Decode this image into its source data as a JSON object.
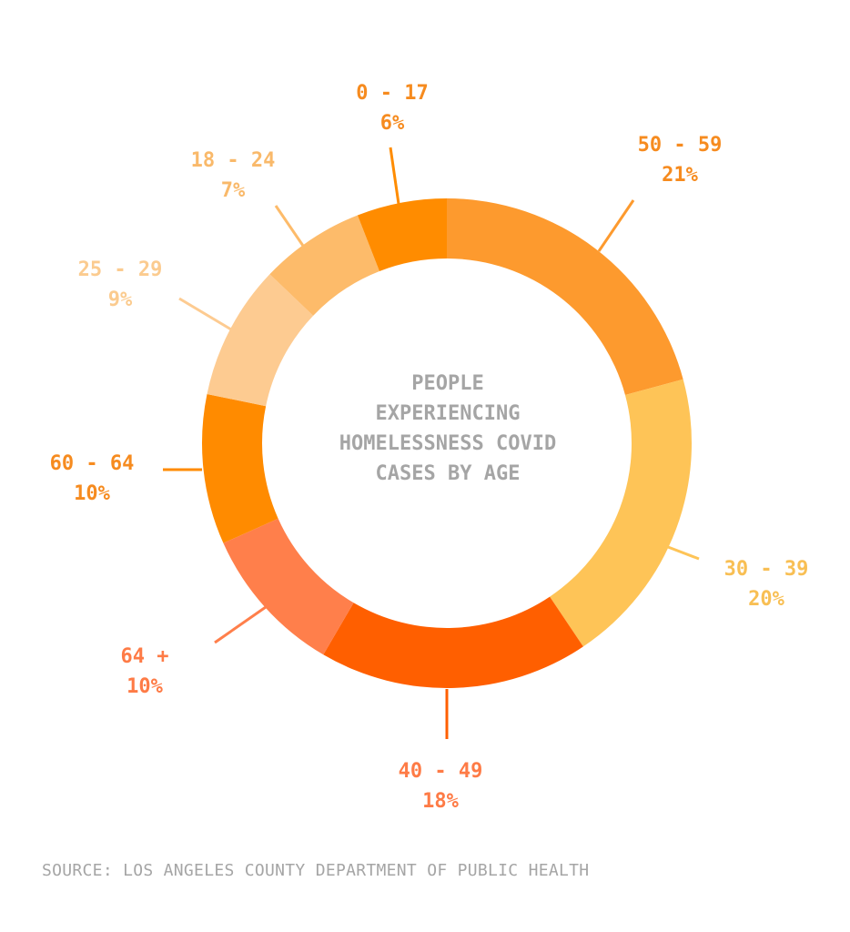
{
  "chart_data": {
    "type": "donut",
    "title": "PEOPLE EXPERIENCING HOMELESSNESS COVID CASES BY AGE",
    "unit": "%",
    "slices": [
      {
        "label": "50 - 59",
        "value": 21,
        "value_text": "21%",
        "color": "#fd9a2e",
        "label_color": "#f68b1f"
      },
      {
        "label": "30 - 39",
        "value": 20,
        "value_text": "20%",
        "color": "#fec457",
        "label_color": "#f8bf54"
      },
      {
        "label": "40 - 49",
        "value": 18,
        "value_text": "18%",
        "color": "#ff5f00",
        "label_color": "#fe7b46"
      },
      {
        "label": "64 +",
        "value": 10,
        "value_text": "10%",
        "color": "#ff7f4b",
        "label_color": "#fe7b46"
      },
      {
        "label": "60 - 64",
        "value": 10,
        "value_text": "10%",
        "color": "#ff8b00",
        "label_color": "#f68b1f"
      },
      {
        "label": "25 - 29",
        "value": 9,
        "value_text": "9%",
        "color": "#fdcb91",
        "label_color": "#fbcb8f"
      },
      {
        "label": "18 - 24",
        "value": 7,
        "value_text": "7%",
        "color": "#fdbb6a",
        "label_color": "#f9b96a"
      },
      {
        "label": "0 - 17",
        "value": 6,
        "value_text": "6%",
        "color": "#ff8c00",
        "label_color": "#f68b1f"
      }
    ]
  },
  "source": "SOURCE: LOS ANGELES COUNTY DEPARTMENT OF PUBLIC HEALTH"
}
